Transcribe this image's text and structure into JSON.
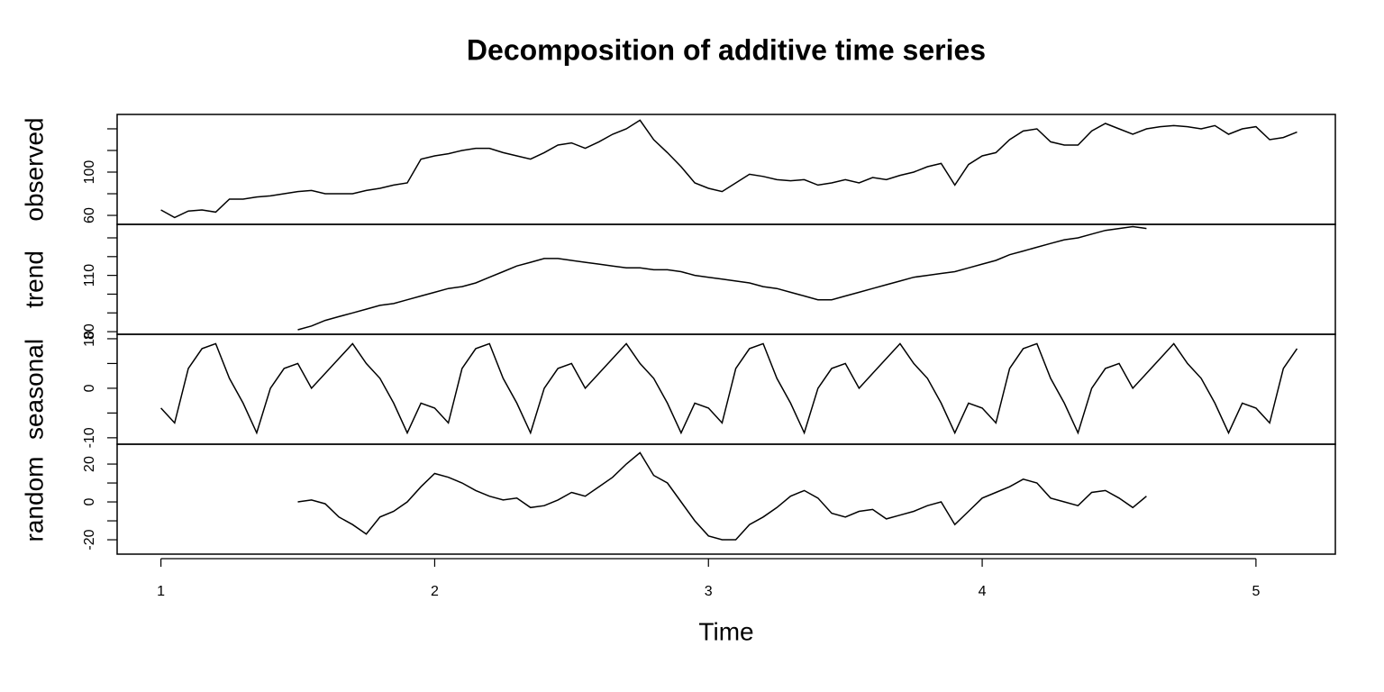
{
  "title": "Decomposition of additive time series",
  "xlabel": "Time",
  "xlim": [
    0.84,
    5.29
  ],
  "xticks": [
    1,
    2,
    3,
    4,
    5
  ],
  "x": [
    1.0,
    1.05,
    1.1,
    1.15,
    1.2,
    1.25,
    1.3,
    1.35,
    1.4,
    1.45,
    1.5,
    1.55,
    1.6,
    1.65,
    1.7,
    1.75,
    1.8,
    1.85,
    1.9,
    1.95,
    2.0,
    2.05,
    2.1,
    2.15,
    2.2,
    2.25,
    2.3,
    2.35,
    2.4,
    2.45,
    2.5,
    2.55,
    2.6,
    2.65,
    2.7,
    2.75,
    2.8,
    2.85,
    2.9,
    2.95,
    3.0,
    3.05,
    3.1,
    3.15,
    3.2,
    3.25,
    3.3,
    3.35,
    3.4,
    3.45,
    3.5,
    3.55,
    3.6,
    3.65,
    3.7,
    3.75,
    3.8,
    3.85,
    3.9,
    3.95,
    4.0,
    4.05,
    4.1,
    4.15,
    4.2,
    4.25,
    4.3,
    4.35,
    4.4,
    4.45,
    4.5,
    4.55,
    4.6,
    4.65,
    4.7,
    4.75,
    4.8,
    4.85,
    4.9,
    4.95,
    5.0,
    5.05,
    5.1,
    5.15
  ],
  "chart_data": [
    {
      "type": "line",
      "ylabel": "observed",
      "color": "#000000",
      "ylim": [
        51.7,
        153.3
      ],
      "yticks": [
        60,
        100
      ],
      "yminor_ticks": [
        80,
        120,
        140
      ],
      "values": [
        65,
        58,
        64,
        65,
        63,
        75,
        75,
        77,
        78,
        80,
        82,
        83,
        80,
        80,
        80,
        83,
        85,
        88,
        90,
        112,
        115,
        117,
        120,
        122,
        122,
        118,
        115,
        112,
        118,
        125,
        127,
        122,
        128,
        135,
        140,
        148,
        130,
        118,
        105,
        90,
        85,
        82,
        90,
        98,
        96,
        93,
        92,
        93,
        88,
        90,
        93,
        90,
        95,
        93,
        97,
        100,
        105,
        108,
        88,
        107,
        115,
        118,
        130,
        138,
        140,
        128,
        125,
        125,
        138,
        145,
        140,
        135,
        140,
        142,
        143,
        142,
        140,
        143,
        135,
        140,
        142,
        130,
        132,
        137
      ]
    },
    {
      "type": "line",
      "ylabel": "trend",
      "color": "#000000",
      "ylim": [
        78.6,
        137.2
      ],
      "yticks": [
        80,
        110
      ],
      "yminor_ticks": [
        90,
        100,
        120,
        130
      ],
      "values": [
        null,
        null,
        null,
        null,
        null,
        null,
        null,
        null,
        null,
        null,
        81,
        83,
        86,
        88,
        90,
        92,
        94,
        95,
        97,
        99,
        101,
        103,
        104,
        106,
        109,
        112,
        115,
        117,
        119,
        119,
        118,
        117,
        116,
        115,
        114,
        114,
        113,
        113,
        112,
        110,
        109,
        108,
        107,
        106,
        104,
        103,
        101,
        99,
        97,
        97,
        99,
        101,
        103,
        105,
        107,
        109,
        110,
        111,
        112,
        114,
        116,
        118,
        121,
        123,
        125,
        127,
        129,
        130,
        132,
        134,
        135,
        136,
        135,
        null,
        null,
        null,
        null,
        null,
        null,
        null,
        null,
        null,
        null,
        null
      ]
    },
    {
      "type": "line",
      "ylabel": "seasonal",
      "color": "#000000",
      "ylim": [
        -11.3,
        10.9
      ],
      "yticks": [
        -10,
        0,
        10
      ],
      "yminor_ticks": [
        -5,
        5
      ],
      "values": [
        -4,
        -7,
        4,
        8,
        9,
        2,
        -3,
        -9,
        0,
        4,
        5,
        0,
        3,
        6,
        9,
        5,
        2,
        -3,
        -9,
        -3,
        -4,
        -7,
        4,
        8,
        9,
        2,
        -3,
        -9,
        0,
        4,
        5,
        0,
        3,
        6,
        9,
        5,
        2,
        -3,
        -9,
        -3,
        -4,
        -7,
        4,
        8,
        9,
        2,
        -3,
        -9,
        0,
        4,
        5,
        0,
        3,
        6,
        9,
        5,
        2,
        -3,
        -9,
        -3,
        -4,
        -7,
        4,
        8,
        9,
        2,
        -3,
        -9,
        0,
        4,
        5,
        0,
        3,
        6,
        9,
        5,
        2,
        -3,
        -9,
        -3,
        -4,
        -7,
        4,
        8
      ]
    },
    {
      "type": "line",
      "ylabel": "random",
      "color": "#000000",
      "ylim": [
        -27.6,
        30.5
      ],
      "yticks": [
        -20,
        0,
        20
      ],
      "yminor_ticks": [
        -10,
        10
      ],
      "values": [
        null,
        null,
        null,
        null,
        null,
        null,
        null,
        null,
        null,
        null,
        0,
        1,
        -1,
        -8,
        -12,
        -17,
        -8,
        -5,
        0,
        8,
        15,
        13,
        10,
        6,
        3,
        1,
        2,
        -3,
        -2,
        1,
        5,
        3,
        8,
        13,
        20,
        26,
        14,
        10,
        0,
        -10,
        -18,
        -20,
        -20,
        -12,
        -8,
        -3,
        3,
        6,
        2,
        -6,
        -8,
        -5,
        -4,
        -9,
        -7,
        -5,
        -2,
        0,
        -12,
        -5,
        2,
        5,
        8,
        12,
        10,
        2,
        0,
        -2,
        5,
        6,
        2,
        -3,
        3,
        null,
        null,
        null,
        null,
        null,
        null,
        null,
        null,
        null,
        null,
        null
      ]
    }
  ]
}
